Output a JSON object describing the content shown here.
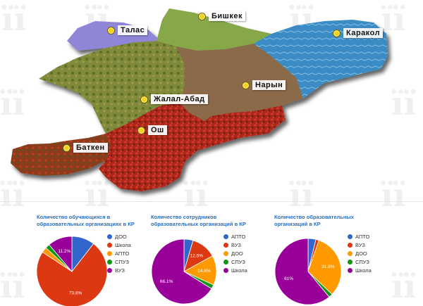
{
  "map": {
    "cities": [
      {
        "id": "talas",
        "label": "Талас"
      },
      {
        "id": "bishkek",
        "label": "Бишкек"
      },
      {
        "id": "karakol",
        "label": "Каракол"
      },
      {
        "id": "naryn",
        "label": "Нарын"
      },
      {
        "id": "jalal-abad",
        "label": "Жалал-Абад"
      },
      {
        "id": "osh",
        "label": "Ош"
      },
      {
        "id": "batken",
        "label": "Баткен"
      }
    ],
    "region_colors": {
      "talas": "#8f86d8",
      "chui": "#86a84a",
      "issyk_kul": "#3d8fc2",
      "naryn": "#8a6a4a",
      "jalal_abad": "#7a7a34",
      "osh": "#b52c1e",
      "batken": "#8d4a22"
    }
  },
  "chart_data": [
    {
      "type": "pie",
      "title": "Количество обучающихся в образовательных организациях в КР",
      "legend": [
        "ДОО",
        "Школа",
        "АПТО",
        "СПУЗ",
        "ВУЗ"
      ],
      "colors": [
        "#3366cc",
        "#dc3912",
        "#ff9900",
        "#109618",
        "#990099"
      ],
      "values": [
        10.5,
        73.8,
        2.5,
        2.0,
        11.2
      ],
      "labels": [
        "",
        "73.8%",
        "",
        "",
        "11.2%"
      ]
    },
    {
      "type": "pie",
      "title": "Количество сотрудников образовательных организаций в КР",
      "legend": [
        "АПТО",
        "ВУЗ",
        "ДОО",
        "СПУЗ",
        "Школа"
      ],
      "colors": [
        "#3366cc",
        "#dc3912",
        "#ff9900",
        "#109618",
        "#990099"
      ],
      "values": [
        4.5,
        12.5,
        14.8,
        2.1,
        66.1
      ],
      "labels": [
        "",
        "12.5%",
        "14.8%",
        "",
        "66.1%"
      ]
    },
    {
      "type": "pie",
      "title": "Количество образовательных организаций в КР",
      "legend": [
        "АПТО",
        "ВУЗ",
        "ДОО",
        "СПУЗ",
        "Школа"
      ],
      "colors": [
        "#3366cc",
        "#dc3912",
        "#ff9900",
        "#109618",
        "#990099"
      ],
      "values": [
        3.8,
        1.5,
        31.8,
        1.9,
        61.0
      ],
      "labels": [
        "",
        "",
        "31.8%",
        "",
        "61%"
      ]
    }
  ]
}
